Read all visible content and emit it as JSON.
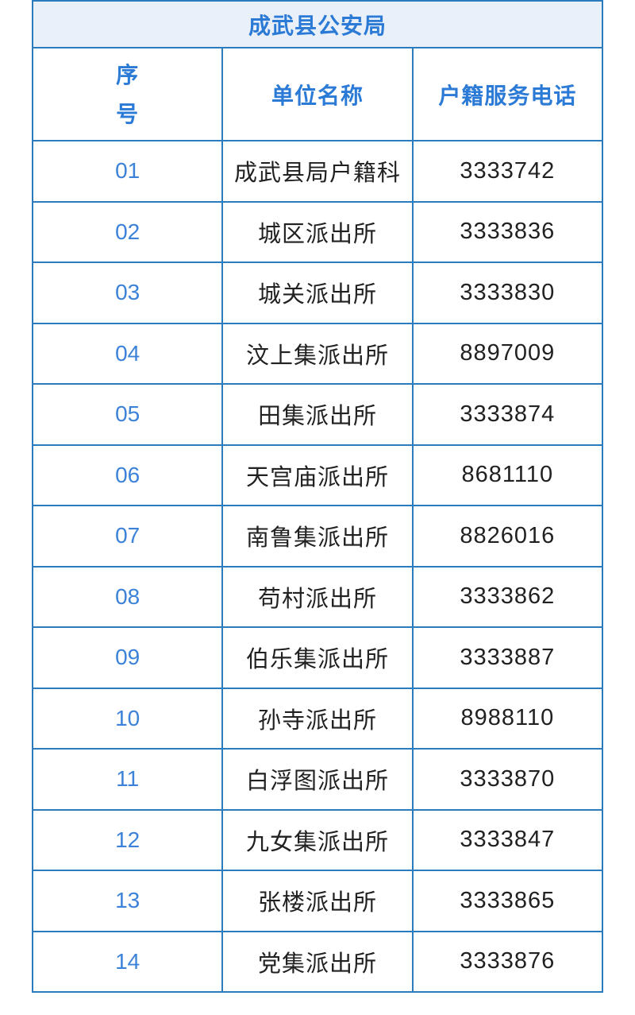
{
  "table": {
    "title": "成武县公安局",
    "columns": [
      "序号",
      "单位名称",
      "户籍服务电话"
    ],
    "rows": [
      {
        "no": "01",
        "name": "成武县局户籍科",
        "phone": "3333742"
      },
      {
        "no": "02",
        "name": "城区派出所",
        "phone": "3333836"
      },
      {
        "no": "03",
        "name": "城关派出所",
        "phone": "3333830"
      },
      {
        "no": "04",
        "name": "汶上集派出所",
        "phone": "8897009"
      },
      {
        "no": "05",
        "name": "田集派出所",
        "phone": "3333874"
      },
      {
        "no": "06",
        "name": "天宫庙派出所",
        "phone": "8681110"
      },
      {
        "no": "07",
        "name": "南鲁集派出所",
        "phone": "8826016"
      },
      {
        "no": "08",
        "name": "苟村派出所",
        "phone": "3333862"
      },
      {
        "no": "09",
        "name": "伯乐集派出所",
        "phone": "3333887"
      },
      {
        "no": "10",
        "name": "孙寺派出所",
        "phone": "8988110"
      },
      {
        "no": "11",
        "name": "白浮图派出所",
        "phone": "3333870"
      },
      {
        "no": "12",
        "name": "九女集派出所",
        "phone": "3333847"
      },
      {
        "no": "13",
        "name": "张楼派出所",
        "phone": "3333865"
      },
      {
        "no": "14",
        "name": "党集派出所",
        "phone": "3333876"
      }
    ]
  },
  "colors": {
    "border": "#2b7cbe",
    "title_bg": "#e9f0fa",
    "header_text": "#2a7ad6",
    "serial_text": "#3b82d8",
    "body_text": "#212121"
  }
}
